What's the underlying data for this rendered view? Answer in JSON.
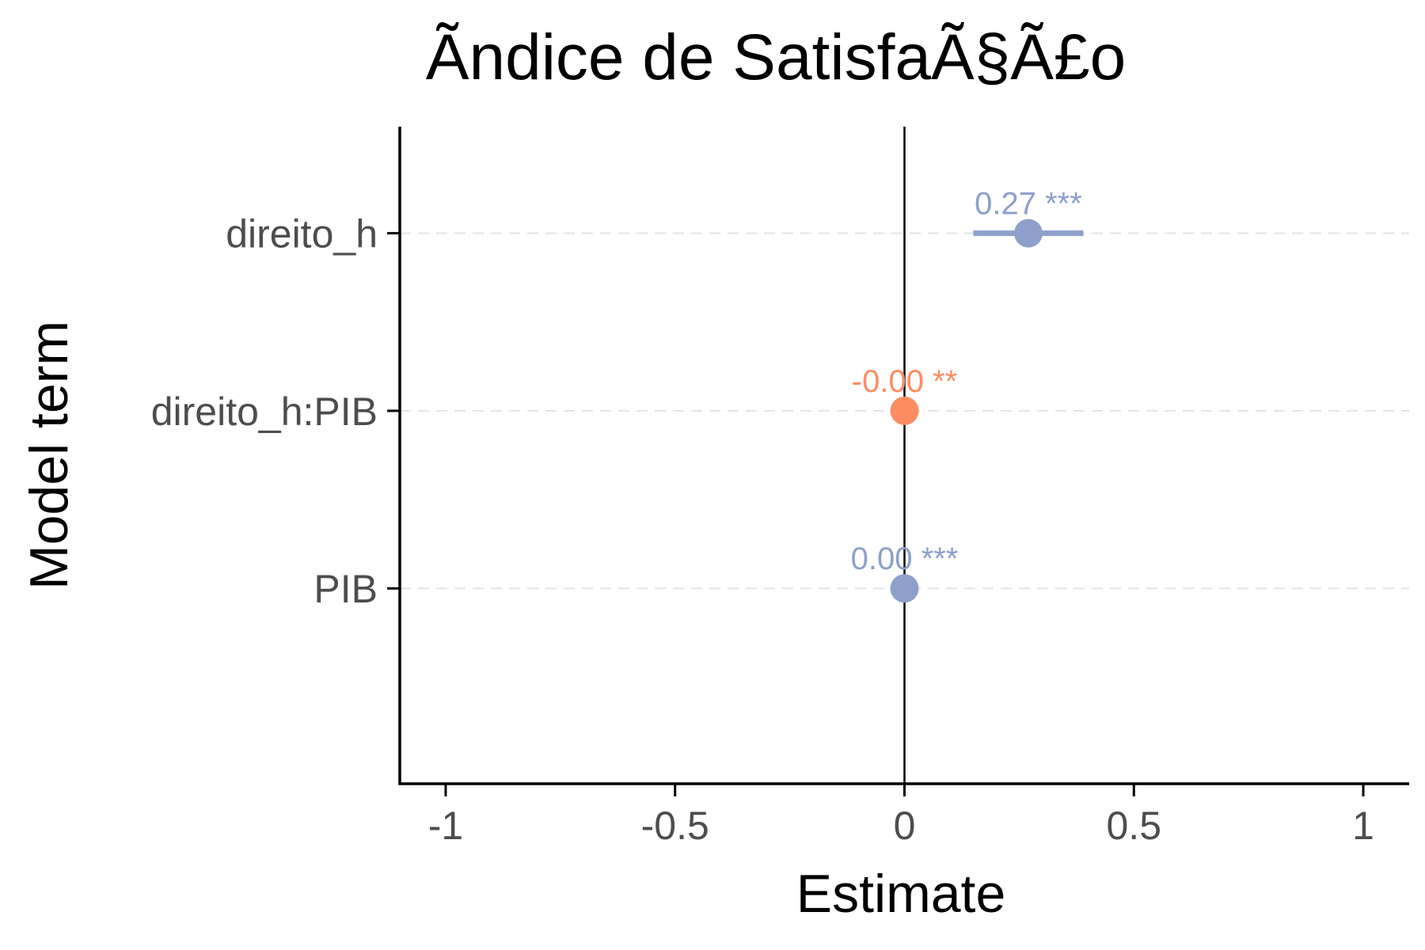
{
  "chart_data": {
    "type": "scatter",
    "title": "Ãndice de SatisfaÃ§Ã£o",
    "xlabel": "Estimate",
    "ylabel": "Model term",
    "xlim": [
      -1.1,
      1.1
    ],
    "x_ticks": [
      -1,
      -0.5,
      0,
      0.5,
      1
    ],
    "x_tick_labels": [
      "-1",
      "-0.5",
      "0",
      "0.5",
      "1"
    ],
    "reference_line_x": 0,
    "grid": "horizontal dashed at each term",
    "terms": [
      {
        "term": "direito_h",
        "estimate": 0.27,
        "conf_low": 0.15,
        "conf_high": 0.39,
        "label": "0.27 ***",
        "color": "#8da0cb"
      },
      {
        "term": "direito_h:PIB",
        "estimate": 0.0,
        "conf_low": 0.0,
        "conf_high": 0.0,
        "label": "-0.00 **",
        "color": "#fc8d62"
      },
      {
        "term": "PIB",
        "estimate": 0.0,
        "conf_low": 0.0,
        "conf_high": 0.0,
        "label": "0.00 ***",
        "color": "#8da0cb"
      }
    ]
  }
}
